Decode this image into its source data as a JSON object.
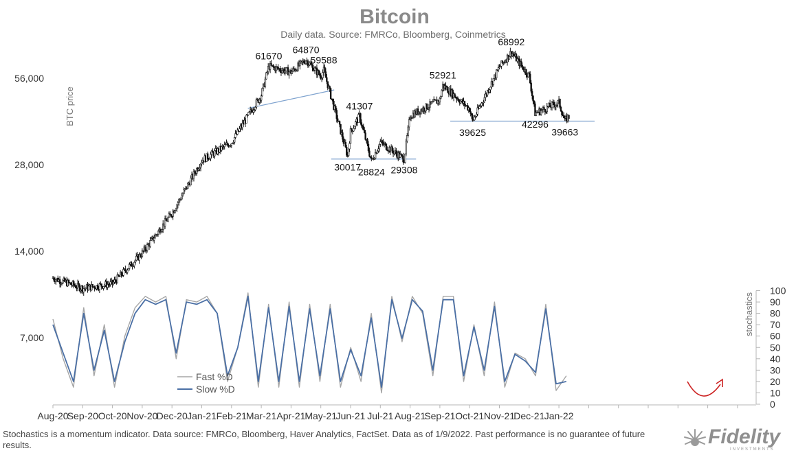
{
  "chart_data": {
    "type": "candlestick-with-oscillator",
    "title": "Bitcoin",
    "subtitle": "Daily data.  Source: FMRCo, Bloomberg, Coinmetrics",
    "ylabel_left": "BTC price",
    "ylabel_right": "stochastics",
    "y_scale": "log",
    "y_ticks_left": [
      {
        "value": 56000,
        "label": "56,000"
      },
      {
        "value": 28000,
        "label": "28,000"
      },
      {
        "value": 14000,
        "label": "14,000"
      },
      {
        "value": 7000,
        "label": "7,000"
      }
    ],
    "y_ticks_right": [
      0,
      10,
      20,
      30,
      40,
      50,
      60,
      70,
      80,
      90,
      100
    ],
    "x_ticks": [
      "Aug-20",
      "Sep-20",
      "Oct-20",
      "Nov-20",
      "Dec-20",
      "Jan-21",
      "Feb-21",
      "Mar-21",
      "Apr-21",
      "May-21",
      "Jun-21",
      "Jul-21",
      "Aug-21",
      "Sep-21",
      "Oct-21",
      "Nov-21",
      "Dec-21",
      "Jan-22"
    ],
    "price_path_monthly": [
      {
        "month": "Aug-20",
        "price": 11300
      },
      {
        "month": "Sep-20",
        "price": 10400
      },
      {
        "month": "Oct-20",
        "price": 10800
      },
      {
        "month": "Nov-20",
        "price": 13800
      },
      {
        "month": "Dec-20",
        "price": 19000
      },
      {
        "month": "Jan-21",
        "price": 29000
      },
      {
        "month": "Feb-21",
        "price": 33500
      },
      {
        "month": "Mar-21",
        "price": 49000
      },
      {
        "month": "Apr-21",
        "price": 58800
      },
      {
        "month": "May-21",
        "price": 57000
      },
      {
        "month": "Jun-21",
        "price": 36500
      },
      {
        "month": "Jul-21",
        "price": 33500
      },
      {
        "month": "Aug-21",
        "price": 41500
      },
      {
        "month": "Sep-21",
        "price": 47100
      },
      {
        "month": "Oct-21",
        "price": 43800
      },
      {
        "month": "Nov-21",
        "price": 61300
      },
      {
        "month": "Dec-21",
        "price": 57000
      },
      {
        "month": "Jan-22",
        "price": 46200
      }
    ],
    "annotations": [
      {
        "label": "61670",
        "date_index": 7.25,
        "value": 61670,
        "pos": "above"
      },
      {
        "label": "64870",
        "date_index": 8.5,
        "value": 64870,
        "pos": "above"
      },
      {
        "label": "59588",
        "date_index": 9.1,
        "value": 59588,
        "pos": "above"
      },
      {
        "label": "41307",
        "date_index": 10.3,
        "value": 41307,
        "pos": "above"
      },
      {
        "label": "30017",
        "date_index": 9.9,
        "value": 30017,
        "pos": "below"
      },
      {
        "label": "28824",
        "date_index": 10.7,
        "value": 28824,
        "pos": "below"
      },
      {
        "label": "29308",
        "date_index": 11.8,
        "value": 29308,
        "pos": "below"
      },
      {
        "label": "52921",
        "date_index": 13.1,
        "value": 52921,
        "pos": "above"
      },
      {
        "label": "39625",
        "date_index": 14.1,
        "value": 39625,
        "pos": "below"
      },
      {
        "label": "68992",
        "date_index": 15.4,
        "value": 68992,
        "pos": "above"
      },
      {
        "label": "42296",
        "date_index": 16.2,
        "value": 42296,
        "pos": "below"
      },
      {
        "label": "39663",
        "date_index": 17.2,
        "value": 39663,
        "pos": "below"
      }
    ],
    "trendlines": [
      {
        "from": {
          "date_index": 6.55,
          "value": 44000
        },
        "to": {
          "date_index": 9.45,
          "value": 51000
        }
      },
      {
        "from": {
          "date_index": 9.35,
          "value": 29300
        },
        "to": {
          "date_index": 12.2,
          "value": 29300
        }
      },
      {
        "from": {
          "date_index": 13.35,
          "value": 39700
        },
        "to": {
          "date_index": 18.2,
          "value": 39700
        }
      }
    ],
    "series": [
      {
        "name": "Fast %D",
        "color": "#a6a6a6",
        "values": [
          75,
          40,
          15,
          85,
          25,
          70,
          15,
          60,
          85,
          95,
          90,
          95,
          40,
          92,
          90,
          95,
          80,
          20,
          50,
          98,
          15,
          88,
          15,
          90,
          15,
          88,
          20,
          88,
          15,
          50,
          20,
          80,
          10,
          95,
          55,
          95,
          80,
          25,
          95,
          95,
          20,
          70,
          25,
          90,
          15,
          45,
          40,
          25,
          88,
          12,
          25
        ]
      },
      {
        "name": "Slow %D",
        "color": "#4a6fa5",
        "values": [
          70,
          45,
          20,
          80,
          30,
          65,
          20,
          55,
          80,
          92,
          88,
          92,
          45,
          90,
          88,
          92,
          80,
          25,
          50,
          95,
          20,
          85,
          20,
          86,
          20,
          84,
          25,
          84,
          20,
          48,
          25,
          76,
          15,
          92,
          58,
          92,
          82,
          30,
          92,
          92,
          25,
          68,
          30,
          86,
          20,
          44,
          38,
          28,
          84,
          18,
          20
        ]
      }
    ],
    "legend": [
      "Fast %D",
      "Slow %D"
    ],
    "legend_position": "bottom-left",
    "accent_arrow_color": "#cc2222"
  },
  "footnote": "Stochastics is a momentum indicator. Data source: FMRCo, Bloomberg, Haver Analytics, FactSet. Data as of 1/9/2022. Past performance is no guarantee of future results.",
  "brand": {
    "name": "Fidelity",
    "tagline": "INVESTMENTS",
    "logo_icon": "fidelity-burst-icon"
  }
}
